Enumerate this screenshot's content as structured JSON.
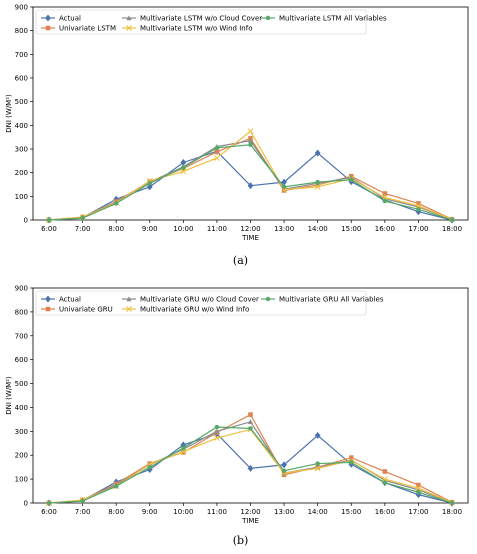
{
  "chart_data": [
    {
      "type": "line",
      "caption": "(a)",
      "xlabel": "TIME",
      "ylabel": "DNI (W/M²)",
      "ylim": [
        0,
        900
      ],
      "yticks": [
        0,
        100,
        200,
        300,
        400,
        500,
        600,
        700,
        800,
        900
      ],
      "categories": [
        "6:00",
        "7:00",
        "8:00",
        "9:00",
        "10:00",
        "11:00",
        "12:00",
        "13:00",
        "14:00",
        "15:00",
        "16:00",
        "17:00",
        "18:00"
      ],
      "legend_position": "top-left",
      "series": [
        {
          "name": "Actual",
          "color": "#4c72b0",
          "marker": "diamond",
          "values": [
            0,
            10,
            88,
            140,
            243,
            290,
            145,
            160,
            283,
            162,
            85,
            35,
            0
          ]
        },
        {
          "name": "Univariate LSTM",
          "color": "#dd8452",
          "marker": "square",
          "values": [
            0,
            12,
            78,
            163,
            218,
            288,
            345,
            125,
            148,
            185,
            112,
            70,
            3
          ]
        },
        {
          "name": "Multivariate LSTM w/o Cloud Cover",
          "color": "#8c8c8c",
          "marker": "triangle",
          "values": [
            0,
            10,
            75,
            160,
            225,
            310,
            335,
            130,
            155,
            180,
            90,
            55,
            2
          ]
        },
        {
          "name": "Multivariate LSTM w/o Wind Info",
          "color": "#f0c040",
          "marker": "x",
          "values": [
            0,
            12,
            72,
            165,
            205,
            262,
            375,
            128,
            140,
            175,
            95,
            60,
            2
          ]
        },
        {
          "name": "Multivariate LSTM All Variables",
          "color": "#55a868",
          "marker": "circle",
          "values": [
            0,
            8,
            70,
            155,
            222,
            305,
            318,
            140,
            160,
            170,
            80,
            45,
            1
          ]
        }
      ]
    },
    {
      "type": "line",
      "caption": "(b)",
      "xlabel": "TIME",
      "ylabel": "DNI (W/M²)",
      "ylim": [
        0,
        900
      ],
      "yticks": [
        0,
        100,
        200,
        300,
        400,
        500,
        600,
        700,
        800,
        900
      ],
      "categories": [
        "6:00",
        "7:00",
        "8:00",
        "9:00",
        "10:00",
        "11:00",
        "12:00",
        "13:00",
        "14:00",
        "15:00",
        "16:00",
        "17:00",
        "18:00"
      ],
      "legend_position": "top-left",
      "series": [
        {
          "name": "Actual",
          "color": "#4c72b0",
          "marker": "diamond",
          "values": [
            0,
            10,
            88,
            140,
            243,
            290,
            145,
            160,
            283,
            162,
            85,
            35,
            0
          ]
        },
        {
          "name": "Univariate GRU",
          "color": "#dd8452",
          "marker": "square",
          "values": [
            0,
            12,
            80,
            165,
            212,
            295,
            370,
            118,
            150,
            190,
            132,
            75,
            3
          ]
        },
        {
          "name": "Multivariate GRU w/o Cloud Cover",
          "color": "#8c8c8c",
          "marker": "triangle",
          "values": [
            0,
            10,
            75,
            160,
            225,
            300,
            340,
            125,
            150,
            180,
            95,
            55,
            2
          ]
        },
        {
          "name": "Multivariate GRU w/o Wind Info",
          "color": "#f0c040",
          "marker": "x",
          "values": [
            0,
            12,
            70,
            162,
            215,
            272,
            308,
            125,
            145,
            178,
            100,
            62,
            2
          ]
        },
        {
          "name": "Multivariate GRU All Variables",
          "color": "#55a868",
          "marker": "circle",
          "values": [
            0,
            8,
            70,
            150,
            230,
            318,
            312,
            135,
            165,
            170,
            85,
            45,
            1
          ]
        }
      ]
    }
  ]
}
